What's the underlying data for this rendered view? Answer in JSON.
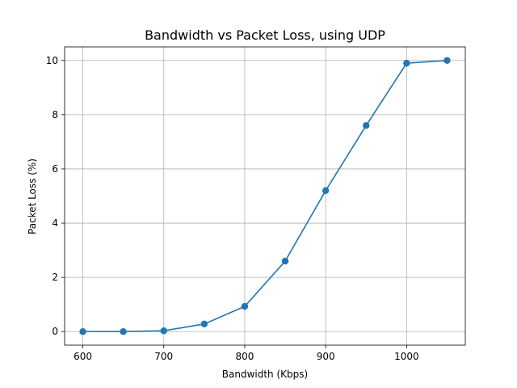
{
  "chart_data": {
    "type": "line",
    "title": "Bandwidth vs Packet Loss, using UDP",
    "xlabel": "Bandwidth (Kbps)",
    "ylabel": "Packet Loss (%)",
    "x": [
      600,
      650,
      700,
      750,
      800,
      850,
      900,
      950,
      1000,
      1050
    ],
    "series": [
      {
        "values": [
          0.0,
          0.0,
          0.03,
          0.28,
          0.93,
          2.6,
          5.2,
          7.6,
          9.9,
          10.0
        ],
        "color": "#1f77b4",
        "marker": "circle"
      }
    ],
    "xlim": [
      577.5,
      1072.5
    ],
    "ylim": [
      -0.5,
      10.5
    ],
    "xticks": [
      600,
      700,
      800,
      900,
      1000
    ],
    "yticks": [
      0,
      2,
      4,
      6,
      8,
      10
    ],
    "grid": true,
    "legend": false
  }
}
